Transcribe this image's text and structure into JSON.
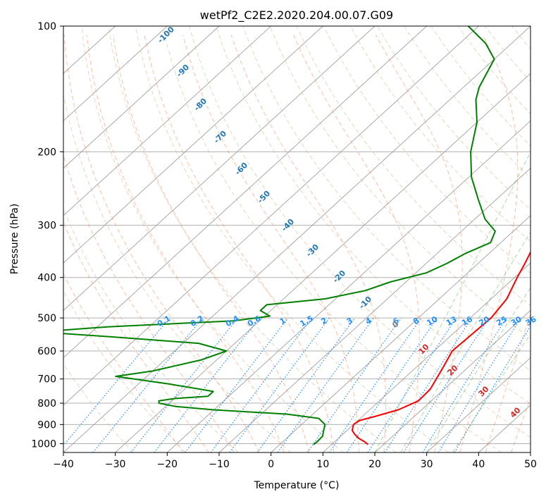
{
  "chart_data": {
    "type": "line",
    "title": "wetPf2_C2E2.2020.204.00.07.G09",
    "xlabel": "Temperature (°C)",
    "ylabel": "Pressure (hPa)",
    "xlim": [
      -40,
      50
    ],
    "ylim": [
      1050,
      100
    ],
    "x_ticks": [
      -40,
      -30,
      -20,
      -10,
      0,
      10,
      20,
      30,
      40,
      50
    ],
    "y_ticks": [
      100,
      200,
      300,
      400,
      500,
      600,
      700,
      800,
      900,
      1000
    ],
    "skew": 1.0,
    "grid": true,
    "series": [
      {
        "name": "temperature",
        "color": "#ff0000",
        "points": [
          [
            17.0,
            1005
          ],
          [
            15.8,
            990
          ],
          [
            13.8,
            970
          ],
          [
            12.3,
            950
          ],
          [
            11.0,
            930
          ],
          [
            10.0,
            900
          ],
          [
            10.3,
            880
          ],
          [
            12.5,
            860
          ],
          [
            15.5,
            830
          ],
          [
            17.5,
            790
          ],
          [
            17.3,
            740
          ],
          [
            15.0,
            650
          ],
          [
            13.5,
            600
          ],
          [
            14.0,
            500
          ],
          [
            13.0,
            450
          ],
          [
            10.5,
            400
          ],
          [
            9.0,
            370
          ],
          [
            6.0,
            320
          ],
          [
            3.0,
            280
          ],
          [
            -2.0,
            240
          ],
          [
            -7.5,
            200
          ],
          [
            -15.0,
            160
          ],
          [
            -22.0,
            130
          ],
          [
            -26.0,
            115
          ],
          [
            -27.5,
            100
          ]
        ]
      },
      {
        "name": "dewpoint",
        "color": "#008000",
        "points": [
          [
            6.5,
            1005
          ],
          [
            6.6,
            990
          ],
          [
            6.5,
            960
          ],
          [
            5.5,
            930
          ],
          [
            4.5,
            900
          ],
          [
            2.0,
            870
          ],
          [
            -5.0,
            850
          ],
          [
            -20.0,
            830
          ],
          [
            -28.0,
            815
          ],
          [
            -32.0,
            800
          ],
          [
            -32.5,
            790
          ],
          [
            -30.0,
            780
          ],
          [
            -24.0,
            770
          ],
          [
            -24.0,
            750
          ],
          [
            -34.0,
            720
          ],
          [
            -46.0,
            690
          ],
          [
            -40.0,
            670
          ],
          [
            -33.0,
            630
          ],
          [
            -30.0,
            600
          ],
          [
            -37.0,
            575
          ],
          [
            -55.0,
            555
          ],
          [
            -70.0,
            540
          ],
          [
            -58.0,
            525
          ],
          [
            -35.0,
            508
          ],
          [
            -29.0,
            495
          ],
          [
            -32.0,
            480
          ],
          [
            -32.0,
            465
          ],
          [
            -22.0,
            450
          ],
          [
            -16.0,
            430
          ],
          [
            -13.0,
            410
          ],
          [
            -8.0,
            390
          ],
          [
            -6.0,
            370
          ],
          [
            -4.5,
            350
          ],
          [
            -2.0,
            330
          ],
          [
            -3.5,
            310
          ],
          [
            -8.0,
            290
          ],
          [
            -13.5,
            260
          ],
          [
            -19.5,
            230
          ],
          [
            -25.0,
            200
          ],
          [
            -30.0,
            170
          ],
          [
            -35.0,
            150
          ],
          [
            -37.0,
            140
          ],
          [
            -40.0,
            120
          ],
          [
            -45.0,
            110
          ],
          [
            -52.0,
            100
          ]
        ]
      }
    ],
    "isotherm_labels": [
      -100,
      -90,
      -80,
      -70,
      -60,
      -50,
      -40,
      -30,
      -20,
      -10,
      0,
      10,
      20,
      30,
      40
    ],
    "mixing_ratio_labels": [
      "0.1",
      "0.2",
      "0.4",
      "0.6",
      "1",
      "1.5",
      "2",
      "3",
      "4",
      "6",
      "8",
      "10",
      "13",
      "16",
      "20",
      "25",
      "30",
      "36"
    ],
    "colors": {
      "isotherm": "#808080",
      "dry_adiabat": "#d2b48c",
      "moist_adiabat": "#ff7f50",
      "mixing_ratio": "#1e90ff",
      "cold_label": "#1f77b4",
      "warm_label": "#d62728",
      "zero_label": "#808080",
      "green_dashed": "#2ca02c"
    }
  }
}
